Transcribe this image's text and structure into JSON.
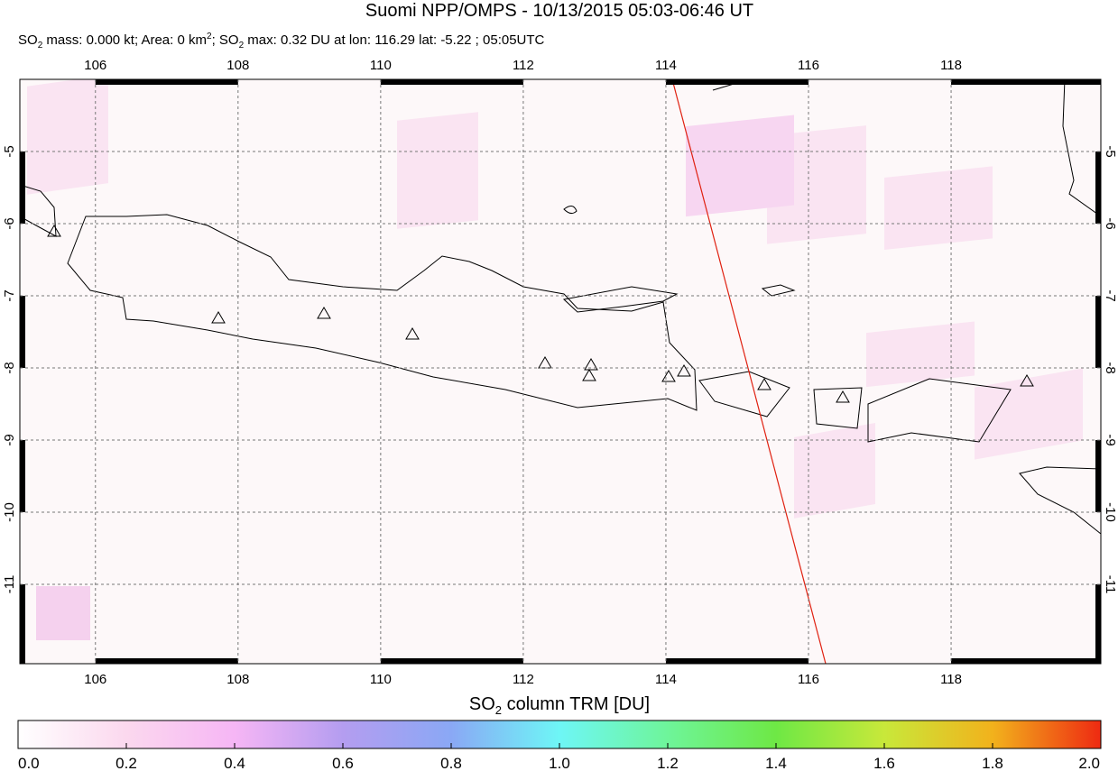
{
  "title": "Suomi NPP/OMPS - 10/13/2015 05:03-06:46 UT",
  "subtitle": [
    "SO",
    "2",
    " mass: 0.000 kt; Area: 0 km",
    "2",
    "; SO",
    "2",
    " max: 0.32 DU at lon: 116.29 lat: -5.22 ; 05:05UTC"
  ],
  "map": {
    "lon_range": [
      104.94,
      120.1
    ],
    "lat_range": [
      -4.0,
      -12.1
    ],
    "lon_ticks": [
      106,
      108,
      110,
      112,
      114,
      116,
      118
    ],
    "lat_ticks": [
      -5,
      -6,
      -7,
      -8,
      -9,
      -10,
      -11
    ]
  },
  "colorbar": {
    "title": [
      "SO",
      "2",
      " column TRM [DU]"
    ],
    "range": [
      0,
      2
    ],
    "ticks": [
      {
        "value": 0,
        "label": "0.0"
      },
      {
        "value": 0.2,
        "label": "0.2"
      },
      {
        "value": 0.4,
        "label": "0.4"
      },
      {
        "value": 0.6,
        "label": "0.6"
      },
      {
        "value": 0.8,
        "label": "0.8"
      },
      {
        "value": 1,
        "label": "1.0"
      },
      {
        "value": 1.2,
        "label": "1.2"
      },
      {
        "value": 1.4,
        "label": "1.4"
      },
      {
        "value": 1.6,
        "label": "1.6"
      },
      {
        "value": 1.8,
        "label": "1.8"
      },
      {
        "value": 2,
        "label": "2.0"
      }
    ]
  }
}
